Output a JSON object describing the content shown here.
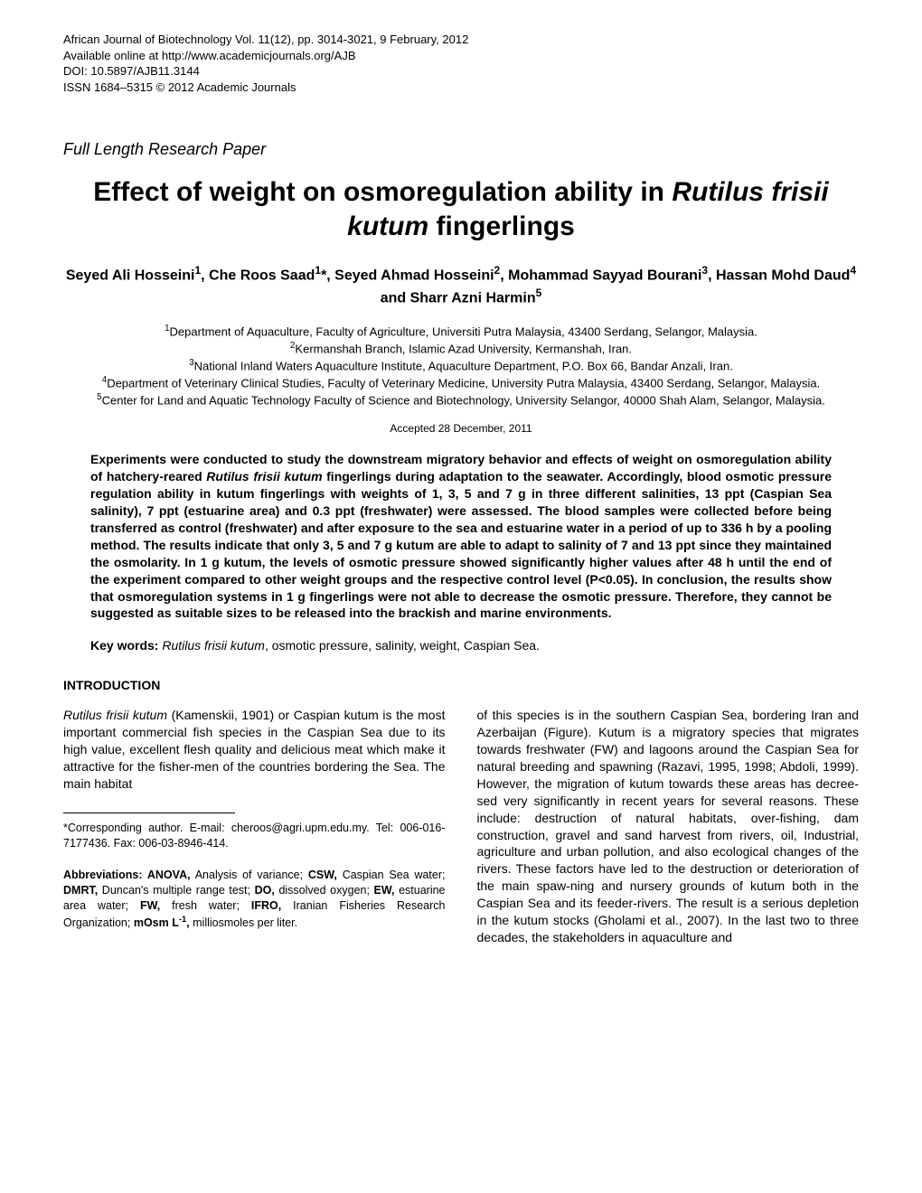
{
  "header": {
    "line1": "African Journal of Biotechnology Vol. 11(12), pp. 3014-3021, 9 February, 2012",
    "line2": "Available online at http://www.academicjournals.org/AJB",
    "line3": "DOI: 10.5897/AJB11.3144",
    "line4": "ISSN 1684–5315 © 2012 Academic Journals"
  },
  "paper_type": "Full Length Research Paper",
  "title_part1": "Effect of weight on osmoregulation ability in ",
  "title_italic": "Rutilus frisii kutum",
  "title_part2": " fingerlings",
  "authors_html": "Seyed Ali Hosseini<sup>1</sup>, Che Roos Saad<sup>1</sup>*, Seyed Ahmad Hosseini<sup>2</sup>, Mohammad Sayyad Bourani<sup>3</sup>, Hassan Mohd Daud<sup>4</sup> and Sharr Azni Harmin<sup>5</sup>",
  "affiliations": {
    "a1": "<sup>1</sup>Department of Aquaculture, Faculty of Agriculture, Universiti Putra Malaysia, 43400 Serdang, Selangor, Malaysia.",
    "a2": "<sup>2</sup>Kermanshah Branch, Islamic Azad University, Kermanshah, Iran.",
    "a3": "<sup>3</sup>National Inland Waters Aquaculture Institute, Aquaculture Department, P.O. Box 66, Bandar Anzali, Iran.",
    "a4": "<sup>4</sup>Department of Veterinary Clinical Studies, Faculty of Veterinary Medicine, University Putra Malaysia, 43400 Serdang, Selangor, Malaysia.",
    "a5": "<sup>5</sup>Center for Land and Aquatic Technology Faculty of Science and Biotechnology, University Selangor, 40000 Shah Alam, Selangor, Malaysia."
  },
  "accepted": "Accepted 28 December, 2011",
  "abstract_html": "Experiments were conducted to study the downstream migratory behavior and effects of weight on osmoregulation ability of hatchery-reared <span class=\"italic\">Rutilus frisii kutum</span> fingerlings during adaptation to the seawater. Accordingly, blood osmotic pressure regulation ability in kutum fingerlings with weights of 1, 3, 5 and 7 g in three different salinities, 13 ppt (Caspian Sea salinity), 7 ppt (estuarine area) and 0.3 ppt (freshwater) were assessed. The blood samples were collected before being transferred as control (freshwater) and after exposure to the sea and estuarine water in a period of up to 336 h by a pooling method. The results indicate that only 3, 5 and 7 g kutum are able to adapt to salinity of 7 and 13 ppt since they maintained the osmolarity. In 1 g kutum, the levels of osmotic pressure showed significantly higher values after 48 h until the end of the experiment compared to other weight groups and the respective control level (P<0.05). In conclusion, the results show that osmoregulation systems in 1 g fingerlings were not able to decrease the osmotic pressure. Therefore, they cannot be suggested as suitable sizes to be released into the brackish and marine environments.",
  "keywords_label": "Key words:",
  "keywords_italic": "Rutilus frisii kutum",
  "keywords_rest": ", osmotic pressure, salinity, weight, Caspian Sea.",
  "section_heading": "INTRODUCTION",
  "col1_para1_html": "<span class=\"italic\">Rutilus frisii kutum</span> (Kamenskii, 1901) or Caspian kutum is the most important commercial fish species in the Caspian Sea due to its high value, excellent flesh quality and delicious meat which make it attractive for the fisher-men of the countries bordering the Sea. The main habitat",
  "footnote_corresponding": "*Corresponding author. E-mail: cheroos@agri.upm.edu.my. Tel: 006-016-7177436. Fax: 006-03-8946-414.",
  "footnote_abbrev_html": "<span class=\"bold\">Abbreviations: ANOVA,</span> Analysis of variance; <span class=\"bold\">CSW,</span> Caspian Sea water; <span class=\"bold\">DMRT,</span> Duncan's multiple range test; <span class=\"bold\">DO,</span> dissolved oxygen; <span class=\"bold\">EW,</span> estuarine area water; <span class=\"bold\">FW,</span> fresh water; <span class=\"bold\">IFRO,</span> Iranian Fisheries Research Organization; <span class=\"bold\">mOsm L<sup>-1</sup>,</span> milliosmoles per liter.",
  "col2_para1": "of this species is in the southern Caspian Sea, bordering Iran and Azerbaijan (Figure). Kutum is a migratory species that migrates towards freshwater (FW) and lagoons around the Caspian Sea for natural breeding and spawning (Razavi, 1995, 1998; Abdoli, 1999). However, the migration of kutum towards these areas has decree-sed very significantly in recent years for several reasons. These include: destruction of natural habitats, over-fishing, dam construction, gravel and sand harvest from rivers, oil, Industrial, agriculture and urban pollution, and also ecological changes of the rivers. These factors have led to the destruction or deterioration of the main spaw-ning and nursery grounds of kutum both in the Caspian Sea and its feeder-rivers. The result is a serious depletion in the kutum stocks (Gholami et al., 2007). In the last two to three decades, the stakeholders in aquaculture and"
}
